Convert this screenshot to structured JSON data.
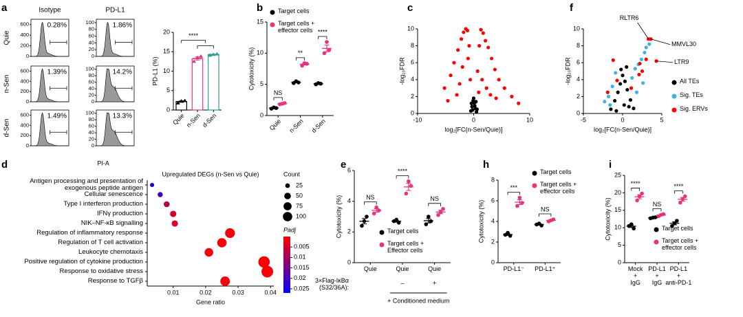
{
  "chart_data": [
    {
      "type": "flow",
      "panel": "a",
      "columns": [
        "Isotype",
        "PD-L1"
      ],
      "rows": [
        "Quie",
        "n-Sen",
        "d-Sen"
      ],
      "values": [
        [
          0.28,
          1.86
        ],
        [
          1.39,
          14.2
        ],
        [
          1.49,
          13.3
        ]
      ],
      "value_labels": [
        [
          "0.28%",
          "1.86%"
        ],
        [
          "1.39%",
          "14.2%"
        ],
        [
          "1.49%",
          "13.3%"
        ]
      ],
      "ylim": [
        [
          0,
          700
        ],
        [
          0,
          110
        ]
      ],
      "yticks": [
        [
          0,
          200,
          400,
          600
        ],
        [
          0,
          20,
          40,
          60,
          80,
          100
        ]
      ],
      "xlabel": "PI-A",
      "color": "#9a9a9a"
    },
    {
      "type": "bar",
      "categories": [
        "Quie",
        "n-Sen",
        "d-Sen"
      ],
      "values": [
        2.2,
        13.2,
        14.3
      ],
      "colors": [
        "#000000",
        "#e8337f",
        "#2a9d8f"
      ],
      "points": [
        [
          1.8,
          2.3,
          2.4
        ],
        [
          12.5,
          13.5,
          13.8
        ],
        [
          14.1,
          14.3,
          14.4
        ]
      ],
      "ylim": [
        0,
        20
      ],
      "yticks": [
        0,
        5,
        10,
        15,
        20
      ],
      "ylabel": "PD-L1 (%)",
      "significance": [
        "****"
      ],
      "xtick_rotation": 45
    },
    {
      "type": "dot",
      "panel": "b",
      "categories": [
        "Quie",
        "n-Sen",
        "d-Sen"
      ],
      "legend": "upper left",
      "xtick_rotation": 45,
      "series": [
        {
          "name": "Target cells",
          "color": "#000000",
          "values": [
            [
              1.1,
              1.3,
              1.2
            ],
            [
              5.2,
              5.5,
              5.3
            ],
            [
              5.0,
              5.2,
              5.1
            ]
          ]
        },
        {
          "name": "Target cells + effector cells",
          "color": "#e8337f",
          "values": [
            [
              1.8,
              1.9,
              2.0
            ],
            [
              8.0,
              8.4,
              8.3
            ],
            [
              10.0,
              11.8,
              10.5
            ]
          ]
        }
      ],
      "ylim": [
        0,
        15
      ],
      "yticks": [
        0,
        5,
        10,
        15
      ],
      "ylabel": "Cytotoxicity (%)",
      "significance": [
        "NS",
        "**",
        "****"
      ]
    },
    {
      "type": "volcano",
      "panel": "c",
      "xlim": [
        -10,
        10
      ],
      "xticks": [
        -10,
        0,
        10
      ],
      "ylim": [
        0,
        10
      ],
      "yticks": [
        0,
        2,
        4,
        6,
        8,
        10
      ],
      "xlabel": "log₂[FC(n-Sen/Quie)]",
      "ylabel": "-log₁₀FDR",
      "series": [
        {
          "color": "#ff0000",
          "x": [
            -5.2,
            -4.1,
            -3.5,
            -2.8,
            -2.2,
            -1.8,
            -1.4,
            -1.1,
            -0.8,
            -3.0,
            -2.0,
            -1.0,
            -0.6,
            -4.6,
            -2.5,
            0.7,
            1.0,
            1.3,
            1.7,
            2.1,
            2.6,
            3.2,
            3.8,
            4.5,
            5.5,
            6.8,
            8.0,
            1.5,
            2.3,
            3.0,
            0.9,
            4.0
          ],
          "values": [
            3.0,
            4.5,
            6.0,
            7.5,
            8.8,
            9.6,
            10,
            9.8,
            8,
            2.2,
            5.5,
            6.5,
            4,
            1.5,
            3.5,
            5,
            8,
            9.9,
            9.5,
            8.6,
            7.8,
            6.5,
            5.2,
            4.0,
            3.0,
            2.0,
            1.2,
            4.0,
            3.0,
            2.2,
            2.5,
            1.8
          ]
        },
        {
          "color": "#000000",
          "x": [
            -0.5,
            -0.3,
            -0.1,
            0.1,
            0.3,
            0.5,
            -0.2,
            0.2,
            0,
            -0.4,
            0.4,
            0.6
          ],
          "values": [
            0.3,
            0.8,
            1.5,
            1.2,
            0.6,
            0.2,
            0.4,
            0.9,
            1.8,
            1.2,
            1.4,
            0.5
          ]
        }
      ]
    },
    {
      "type": "volcano",
      "panel": "f",
      "xlim": [
        -5,
        5
      ],
      "xticks": [
        -5,
        0,
        5
      ],
      "ylim": [
        0,
        10
      ],
      "yticks": [
        0,
        2,
        4,
        6,
        8,
        10
      ],
      "xlabel": "log₂[FC(n-Sen/Quie)]",
      "ylabel": "-log₁₀FDR",
      "legend": "right",
      "series": [
        {
          "name": "All TEs",
          "color": "#000000",
          "x": [
            -1.5,
            -1,
            -0.6,
            -0.3,
            0,
            0.3,
            0.6,
            1,
            1.4,
            -0.8,
            0.2,
            0.8,
            -0.2,
            0.5
          ],
          "values": [
            0.5,
            1.5,
            2.5,
            3.5,
            4.5,
            3.8,
            2.8,
            1.6,
            0.6,
            0.3,
            1.0,
            0.8,
            5.2,
            5.5
          ]
        },
        {
          "name": "Sig. TEs",
          "color": "#3fb0e8",
          "x": [
            -2.3,
            -1.8,
            -1.3,
            -0.9,
            1.2,
            1.6,
            2.0,
            2.4,
            2.8,
            3.0,
            1.8,
            2.6,
            -1.6,
            3.4
          ],
          "values": [
            1.4,
            2.0,
            3.2,
            4.8,
            4.2,
            5.3,
            5.8,
            6.4,
            7.2,
            7.8,
            2.5,
            3.6,
            1.0,
            8.2
          ]
        },
        {
          "name": "Sig. ERVs",
          "color": "#ff0000",
          "x": [
            -1.9,
            -1.2,
            -0.7,
            1.1,
            2.1,
            2.5,
            3.0,
            3.3,
            3.6,
            4.3,
            2.2
          ],
          "values": [
            2.5,
            6.3,
            3.9,
            3.0,
            4.6,
            5.0,
            6.4,
            8.8,
            8.8,
            6.2,
            5.9
          ]
        }
      ],
      "annotations": [
        {
          "text": "RLTR6",
          "x": 3.3,
          "y": 8.8
        },
        {
          "text": "MMVL30",
          "x": 3.6,
          "y": 8.8
        },
        {
          "text": "LTR9",
          "x": 4.3,
          "y": 6.2
        }
      ]
    },
    {
      "type": "bubble",
      "panel": "d",
      "title": "Upregulated DEGs (n-Sen vs Quie)",
      "xlabel": "Gene ratio",
      "categories": [
        "Antigen processing and presentation of exogenous peptide antigen",
        "Cellular senescence",
        "Type I interferon production",
        "IFNγ production",
        "NIK–NF-κB signalling",
        "Regulation of inflammatory response",
        "Regulation of T cell activation",
        "Leukocyte chemotaxis",
        "Positive regulation of cytokine production",
        "Response to oxidative stress",
        "Response to TGFβ"
      ],
      "values": [
        0.0035,
        0.006,
        0.008,
        0.01,
        0.0105,
        0.0275,
        0.025,
        0.021,
        0.038,
        0.039,
        0.026
      ],
      "sizes": [
        20,
        30,
        40,
        45,
        45,
        110,
        100,
        85,
        150,
        155,
        105
      ],
      "padj": [
        0.025,
        0.02,
        0.008,
        0.005,
        0.004,
        0.001,
        0.001,
        0.001,
        0.0005,
        0.0005,
        0.001
      ],
      "xlim": [
        0.002,
        0.041
      ],
      "xticks": [
        0.01,
        0.02,
        0.03,
        0.04
      ],
      "size_legend": {
        "title": "Count",
        "values": [
          25,
          50,
          75,
          100
        ]
      },
      "color_legend": {
        "title": "Padj",
        "ticks": [
          0.005,
          0.01,
          0.015,
          0.02,
          0.025
        ],
        "lim": [
          0,
          0.027
        ],
        "colors": [
          "#ff0000",
          "#0000ff"
        ]
      }
    },
    {
      "type": "dot",
      "panel": "e",
      "categories": [
        "Quie",
        "Quie",
        "Quie"
      ],
      "legend": "lower center",
      "series": [
        {
          "name": "Target cells",
          "color": "#000000",
          "values": [
            [
              2.4,
              2.7,
              3.0
            ],
            [
              2.7,
              2.8,
              2.6
            ],
            [
              2.5,
              3.0,
              2.7
            ]
          ]
        },
        {
          "name": "Target cells + Effector cells",
          "color": "#e8337f",
          "values": [
            [
              3.2,
              3.6,
              3.4
            ],
            [
              4.5,
              5.3,
              5.0
            ],
            [
              3.1,
              3.3,
              3.5
            ]
          ]
        }
      ],
      "ylim": [
        0,
        6
      ],
      "yticks": [
        0,
        2,
        4,
        6
      ],
      "ylabel": "Cytotoxicity (%)",
      "significance": [
        "NS",
        "****",
        "NS"
      ],
      "row_label": "3×Flag-IκBα\n(S32/36A):",
      "row_values": [
        null,
        "–",
        "+"
      ],
      "footer": "+ Conditioned medium"
    },
    {
      "type": "dot",
      "panel": "h",
      "categories": [
        "PD-L1⁻",
        "PD-L1⁺"
      ],
      "legend": "upper right",
      "series": [
        {
          "name": "Target cells",
          "color": "#000000",
          "values": [
            [
              2.7,
              2.9,
              2.6
            ],
            [
              3.7,
              3.8,
              3.6
            ]
          ]
        },
        {
          "name": "Target cells + effector cells",
          "color": "#e8337f",
          "values": [
            [
              5.5,
              6.3,
              5.8
            ],
            [
              4.0,
              4.1,
              4.2
            ]
          ]
        }
      ],
      "ylim": [
        0,
        8
      ],
      "yticks": [
        0,
        2,
        4,
        6,
        8
      ],
      "ylabel": "Cytotoxicity (%)",
      "significance": [
        "***",
        "NS"
      ]
    },
    {
      "type": "dot",
      "panel": "i",
      "categories": [
        "Mock\n+\nIgG",
        "PD-L1\n+\nIgG",
        "PD-L1\n+\nanti-PD-1"
      ],
      "legend": "lower right",
      "series": [
        {
          "name": "Target cells",
          "color": "#000000",
          "values": [
            [
              10.5,
              11,
              9.8
            ],
            [
              12.7,
              12.9,
              13
            ],
            [
              10.5,
              11.3,
              12
            ]
          ]
        },
        {
          "name": "Target cells + effector cells",
          "color": "#e8337f",
          "values": [
            [
              17.8,
              19,
              19.8
            ],
            [
              13.3,
              13.7,
              13.9
            ],
            [
              17.2,
              18.2,
              19
            ]
          ]
        }
      ],
      "ylim": [
        0,
        25
      ],
      "yticks": [
        0,
        5,
        10,
        15,
        20,
        25
      ],
      "ylabel": "Cytotoxicity (%)",
      "significance": [
        "****",
        "NS",
        "****"
      ]
    }
  ]
}
